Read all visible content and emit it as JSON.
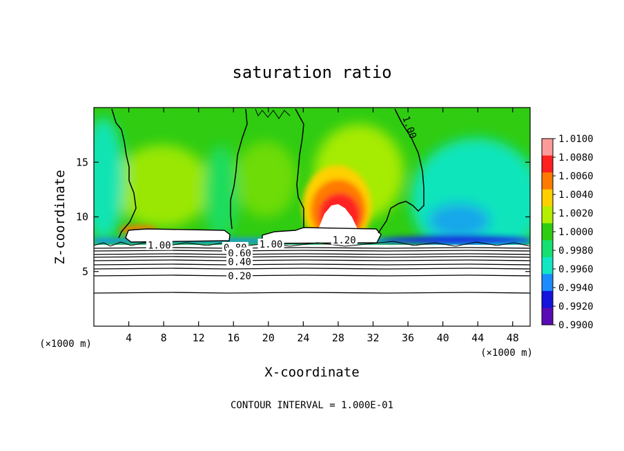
{
  "chart_data": {
    "type": "heatmap",
    "title": "saturation ratio",
    "xlabel": "X-coordinate",
    "ylabel": "Z-coordinate",
    "x_unit": "(×1000 m)",
    "z_unit": "(×1000 m)",
    "xlim": [
      0,
      50
    ],
    "ylim": [
      0,
      20
    ],
    "x_ticks": [
      4,
      8,
      12,
      16,
      20,
      24,
      28,
      32,
      36,
      40,
      44,
      48
    ],
    "y_ticks": [
      5,
      10,
      15
    ],
    "colorbar": {
      "values": [
        1.01,
        1.008,
        1.006,
        1.004,
        1.002,
        1.0,
        0.998,
        0.996,
        0.994,
        0.992,
        0.99
      ],
      "labels": [
        "1.0100",
        "1.0080",
        "1.0060",
        "1.0040",
        "1.0020",
        "1.0000",
        "0.9980",
        "0.9960",
        "0.9940",
        "0.9920",
        "0.9900"
      ],
      "colors": [
        "#ff9a9a",
        "#ff2020",
        "#ff7a00",
        "#ffd000",
        "#b4ee00",
        "#2fcc11",
        "#16e070",
        "#12e7c4",
        "#1a8cff",
        "#1414dc",
        "#5a0cb4"
      ]
    },
    "contour_labels": [
      {
        "text": "1.00",
        "x": 7.5,
        "z": 7.4
      },
      {
        "text": "1.00",
        "x": 20.3,
        "z": 7.5
      },
      {
        "text": "1.20",
        "x": 28.7,
        "z": 7.9
      },
      {
        "text": "0.80",
        "x": 16.2,
        "z": 7.2
      },
      {
        "text": "0.60",
        "x": 16.7,
        "z": 6.7
      },
      {
        "text": "0.40",
        "x": 16.7,
        "z": 5.9
      },
      {
        "text": "0.20",
        "x": 16.7,
        "z": 4.6
      },
      {
        "text": "1.00",
        "x": 36.2,
        "z": 18.2
      }
    ],
    "footer": "CONTOUR INTERVAL = 1.000E-01"
  }
}
